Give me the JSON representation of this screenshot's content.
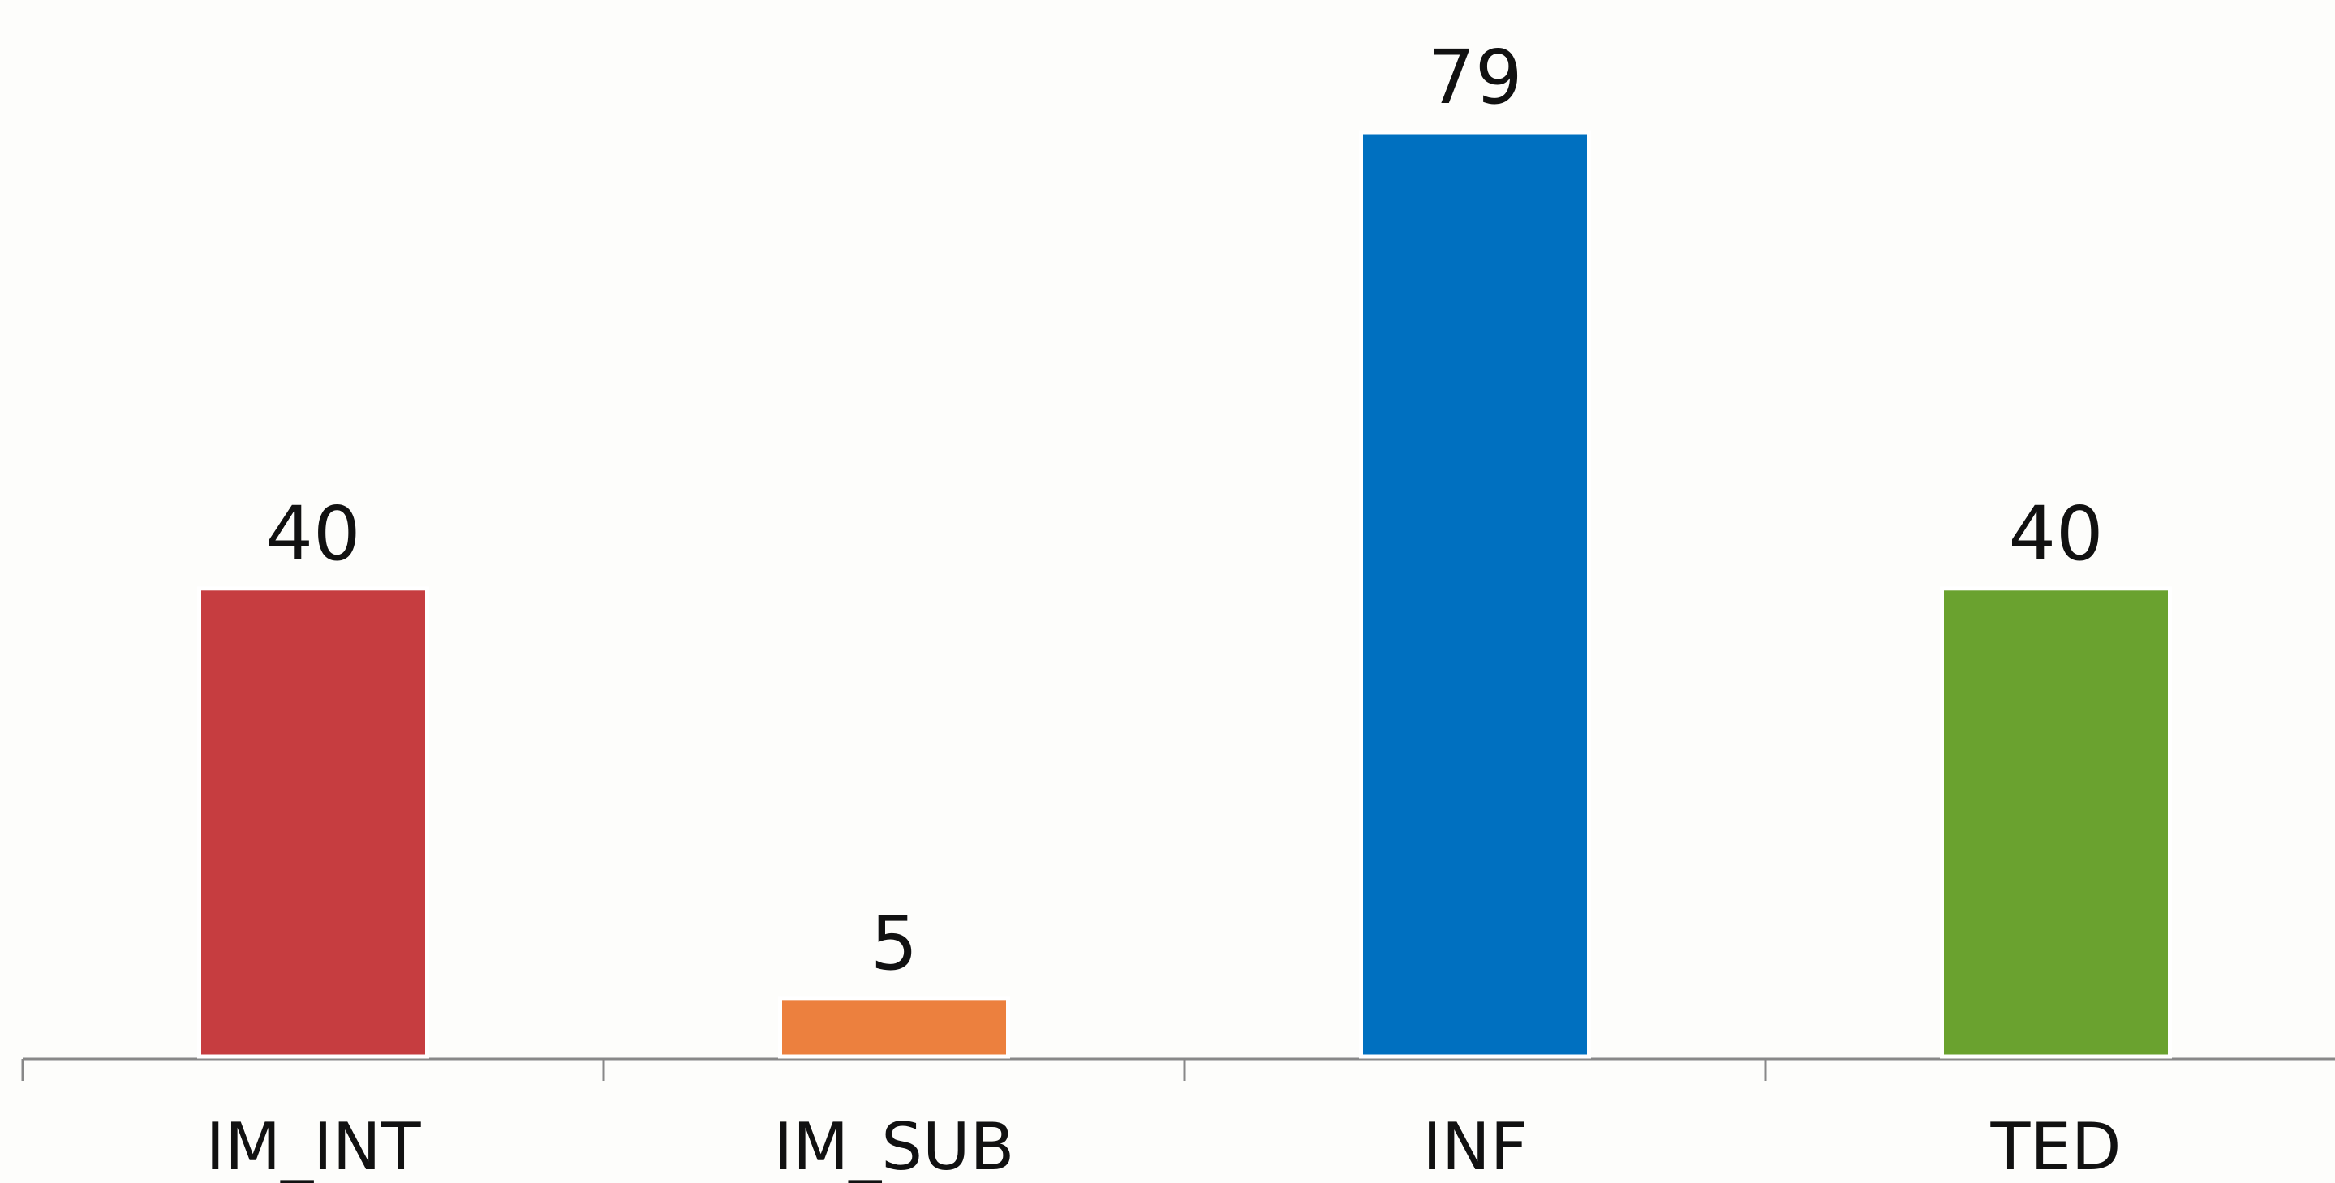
{
  "chart_data": {
    "type": "bar",
    "categories": [
      "IM_INT",
      "IM_SUB",
      "INF",
      "TED"
    ],
    "values": [
      40,
      5,
      79,
      40
    ],
    "colors": [
      "#c63d40",
      "#ec803e",
      "#0070c0",
      "#6aa22f"
    ]
  }
}
